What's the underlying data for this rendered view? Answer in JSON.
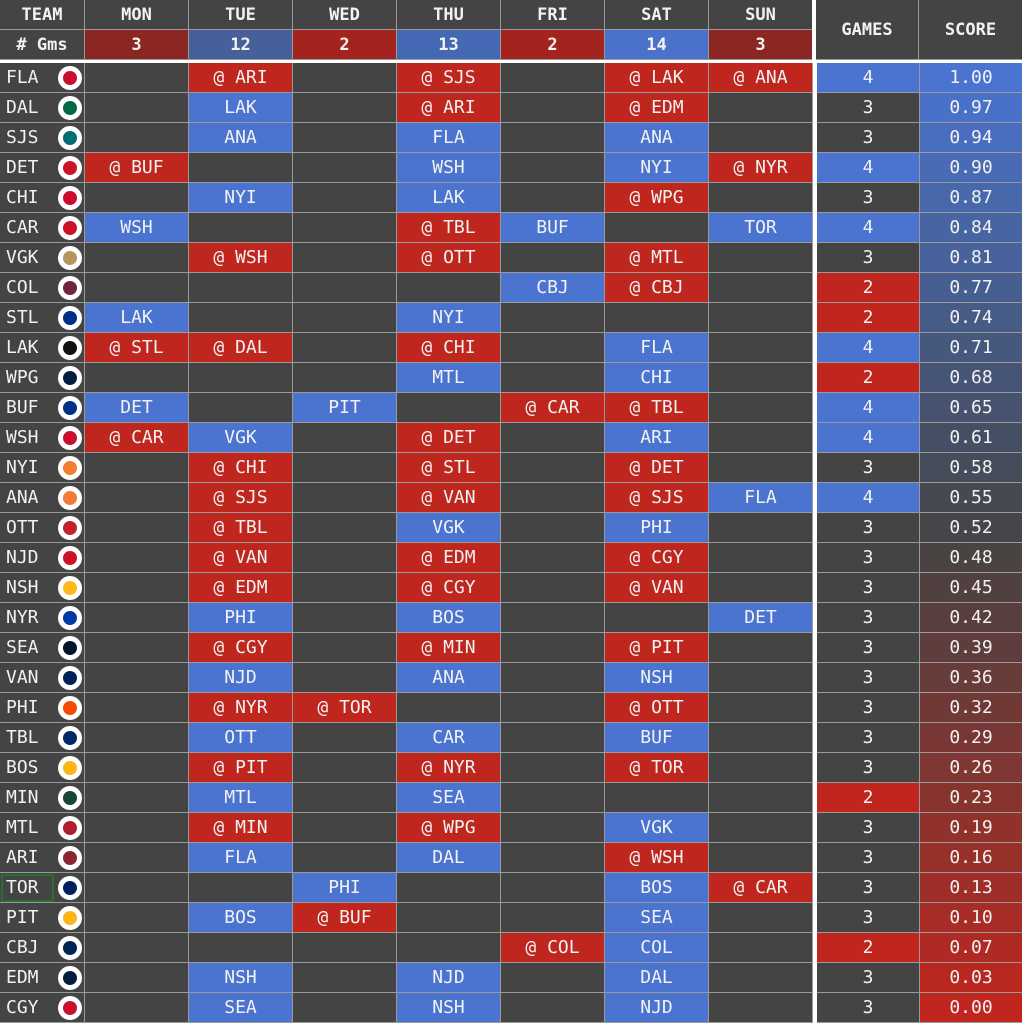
{
  "header": {
    "team_label": "TEAM",
    "games_label": "# Gms",
    "days": [
      {
        "label": "MON",
        "games": "3",
        "color": "#8b2622"
      },
      {
        "label": "TUE",
        "games": "12",
        "color": "#46609a"
      },
      {
        "label": "WED",
        "games": "2",
        "color": "#a3241f"
      },
      {
        "label": "THU",
        "games": "13",
        "color": "#4468b4"
      },
      {
        "label": "FRI",
        "games": "2",
        "color": "#a3241f"
      },
      {
        "label": "SAT",
        "games": "14",
        "color": "#4a72cc"
      },
      {
        "label": "SUN",
        "games": "3",
        "color": "#8b2622"
      }
    ],
    "total_games_label": "GAMES",
    "score_label": "SCORE"
  },
  "colors": {
    "away": "#bf261e",
    "home": "#4a74d0",
    "empty": "#444444",
    "high": "#4a74d0",
    "mid": "#444444",
    "low": "#c0261e"
  },
  "selected_team": "TOR",
  "teams": [
    {
      "team": "FLA",
      "logo_color": "#c8102e",
      "days": [
        "",
        "@ ARI",
        "",
        "@ SJS",
        "",
        "@ LAK",
        "@ ANA"
      ],
      "games": "4",
      "score": "1.00"
    },
    {
      "team": "DAL",
      "logo_color": "#006847",
      "days": [
        "",
        "LAK",
        "",
        "@ ARI",
        "",
        "@ EDM",
        ""
      ],
      "games": "3",
      "score": "0.97"
    },
    {
      "team": "SJS",
      "logo_color": "#006d75",
      "days": [
        "",
        "ANA",
        "",
        "FLA",
        "",
        "ANA",
        ""
      ],
      "games": "3",
      "score": "0.94"
    },
    {
      "team": "DET",
      "logo_color": "#ce1126",
      "days": [
        "@ BUF",
        "",
        "",
        "WSH",
        "",
        "NYI",
        "@ NYR"
      ],
      "games": "4",
      "score": "0.90"
    },
    {
      "team": "CHI",
      "logo_color": "#cf0a2c",
      "days": [
        "",
        "NYI",
        "",
        "LAK",
        "",
        "@ WPG",
        ""
      ],
      "games": "3",
      "score": "0.87"
    },
    {
      "team": "CAR",
      "logo_color": "#ce1126",
      "days": [
        "WSH",
        "",
        "",
        "@ TBL",
        "BUF",
        "",
        "TOR"
      ],
      "games": "4",
      "score": "0.84"
    },
    {
      "team": "VGK",
      "logo_color": "#b4975a",
      "days": [
        "",
        "@ WSH",
        "",
        "@ OTT",
        "",
        "@ MTL",
        ""
      ],
      "games": "3",
      "score": "0.81"
    },
    {
      "team": "COL",
      "logo_color": "#6f263d",
      "days": [
        "",
        "",
        "",
        "",
        "CBJ",
        "@ CBJ",
        ""
      ],
      "games": "2",
      "score": "0.77"
    },
    {
      "team": "STL",
      "logo_color": "#002f87",
      "days": [
        "LAK",
        "",
        "",
        "NYI",
        "",
        "",
        ""
      ],
      "games": "2",
      "score": "0.74"
    },
    {
      "team": "LAK",
      "logo_color": "#111111",
      "days": [
        "@ STL",
        "@ DAL",
        "",
        "@ CHI",
        "",
        "FLA",
        ""
      ],
      "games": "4",
      "score": "0.71"
    },
    {
      "team": "WPG",
      "logo_color": "#041e42",
      "days": [
        "",
        "",
        "",
        "MTL",
        "",
        "CHI",
        ""
      ],
      "games": "2",
      "score": "0.68"
    },
    {
      "team": "BUF",
      "logo_color": "#003087",
      "days": [
        "DET",
        "",
        "PIT",
        "",
        "@ CAR",
        "@ TBL",
        ""
      ],
      "games": "4",
      "score": "0.65"
    },
    {
      "team": "WSH",
      "logo_color": "#c8102e",
      "days": [
        "@ CAR",
        "VGK",
        "",
        "@ DET",
        "",
        "ARI",
        ""
      ],
      "games": "4",
      "score": "0.61"
    },
    {
      "team": "NYI",
      "logo_color": "#f47d30",
      "days": [
        "",
        "@ CHI",
        "",
        "@ STL",
        "",
        "@ DET",
        ""
      ],
      "games": "3",
      "score": "0.58"
    },
    {
      "team": "ANA",
      "logo_color": "#f47a38",
      "days": [
        "",
        "@ SJS",
        "",
        "@ VAN",
        "",
        "@ SJS",
        "FLA"
      ],
      "games": "4",
      "score": "0.55"
    },
    {
      "team": "OTT",
      "logo_color": "#c52032",
      "days": [
        "",
        "@ TBL",
        "",
        "VGK",
        "",
        "PHI",
        ""
      ],
      "games": "3",
      "score": "0.52"
    },
    {
      "team": "NJD",
      "logo_color": "#ce1126",
      "days": [
        "",
        "@ VAN",
        "",
        "@ EDM",
        "",
        "@ CGY",
        ""
      ],
      "games": "3",
      "score": "0.48"
    },
    {
      "team": "NSH",
      "logo_color": "#ffb81c",
      "days": [
        "",
        "@ EDM",
        "",
        "@ CGY",
        "",
        "@ VAN",
        ""
      ],
      "games": "3",
      "score": "0.45"
    },
    {
      "team": "NYR",
      "logo_color": "#0038a8",
      "days": [
        "",
        "PHI",
        "",
        "BOS",
        "",
        "",
        "DET"
      ],
      "games": "3",
      "score": "0.42"
    },
    {
      "team": "SEA",
      "logo_color": "#001628",
      "days": [
        "",
        "@ CGY",
        "",
        "@ MIN",
        "",
        "@ PIT",
        ""
      ],
      "games": "3",
      "score": "0.39"
    },
    {
      "team": "VAN",
      "logo_color": "#00205b",
      "days": [
        "",
        "NJD",
        "",
        "ANA",
        "",
        "NSH",
        ""
      ],
      "games": "3",
      "score": "0.36"
    },
    {
      "team": "PHI",
      "logo_color": "#f74902",
      "days": [
        "",
        "@ NYR",
        "@ TOR",
        "",
        "",
        "@ OTT",
        ""
      ],
      "games": "3",
      "score": "0.32"
    },
    {
      "team": "TBL",
      "logo_color": "#002868",
      "days": [
        "",
        "OTT",
        "",
        "CAR",
        "",
        "BUF",
        ""
      ],
      "games": "3",
      "score": "0.29"
    },
    {
      "team": "BOS",
      "logo_color": "#fcb514",
      "days": [
        "",
        "@ PIT",
        "",
        "@ NYR",
        "",
        "@ TOR",
        ""
      ],
      "games": "3",
      "score": "0.26"
    },
    {
      "team": "MIN",
      "logo_color": "#154734",
      "days": [
        "",
        "MTL",
        "",
        "SEA",
        "",
        "",
        ""
      ],
      "games": "2",
      "score": "0.23"
    },
    {
      "team": "MTL",
      "logo_color": "#af1e2d",
      "days": [
        "",
        "@ MIN",
        "",
        "@ WPG",
        "",
        "VGK",
        ""
      ],
      "games": "3",
      "score": "0.19"
    },
    {
      "team": "ARI",
      "logo_color": "#8c2633",
      "days": [
        "",
        "FLA",
        "",
        "DAL",
        "",
        "@ WSH",
        ""
      ],
      "games": "3",
      "score": "0.16"
    },
    {
      "team": "TOR",
      "logo_color": "#00205b",
      "days": [
        "",
        "",
        "PHI",
        "",
        "",
        "BOS",
        "@ CAR"
      ],
      "games": "3",
      "score": "0.13"
    },
    {
      "team": "PIT",
      "logo_color": "#fcb514",
      "days": [
        "",
        "BOS",
        "@ BUF",
        "",
        "",
        "SEA",
        ""
      ],
      "games": "3",
      "score": "0.10"
    },
    {
      "team": "CBJ",
      "logo_color": "#002654",
      "days": [
        "",
        "",
        "",
        "",
        "@ COL",
        "COL",
        ""
      ],
      "games": "2",
      "score": "0.07"
    },
    {
      "team": "EDM",
      "logo_color": "#041e42",
      "days": [
        "",
        "NSH",
        "",
        "NJD",
        "",
        "DAL",
        ""
      ],
      "games": "3",
      "score": "0.03"
    },
    {
      "team": "CGY",
      "logo_color": "#c8102e",
      "days": [
        "",
        "SEA",
        "",
        "NSH",
        "",
        "NJD",
        ""
      ],
      "games": "3",
      "score": "0.00"
    }
  ]
}
